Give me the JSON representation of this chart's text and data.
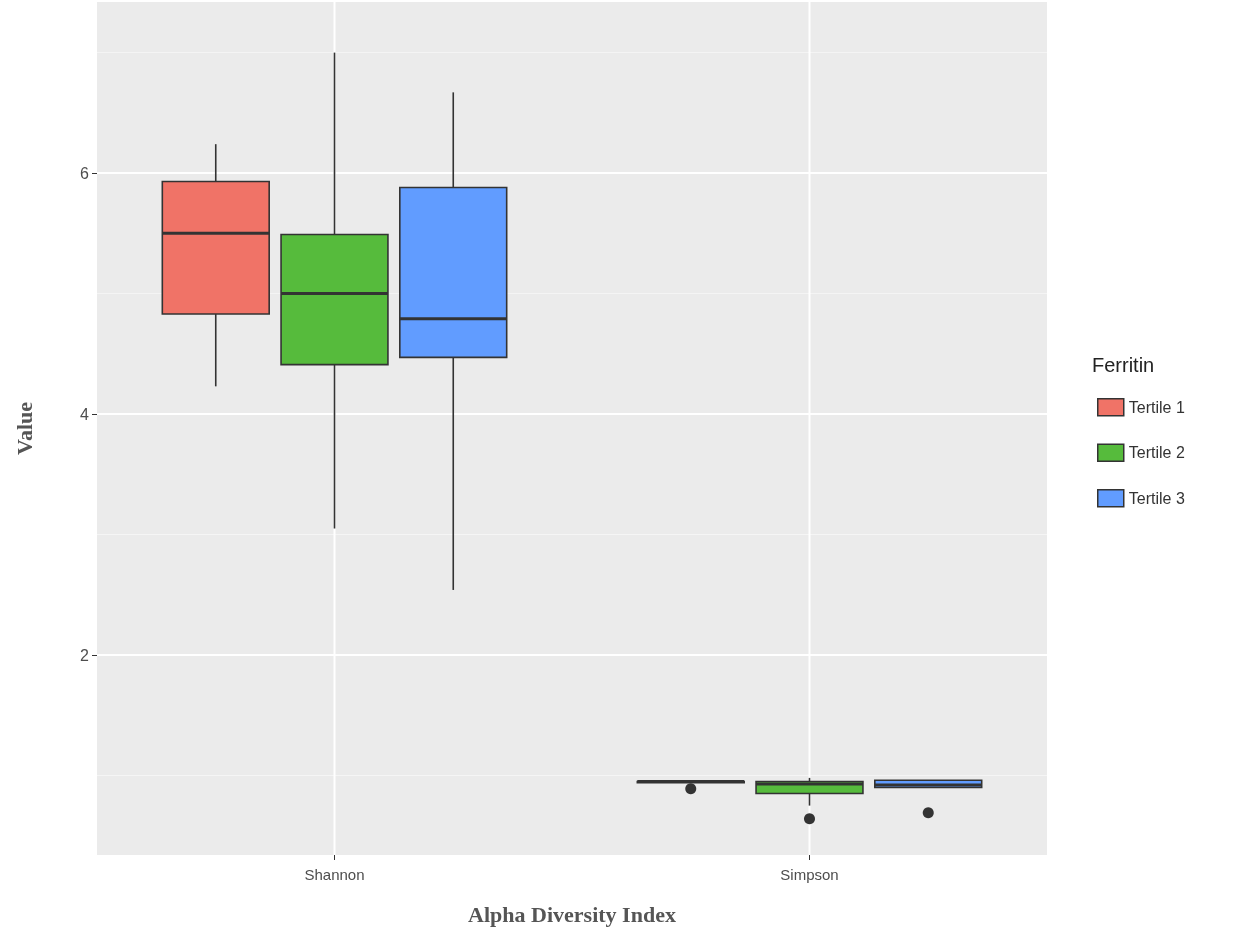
{
  "chart_data": {
    "type": "box",
    "xlabel": "Alpha Diversity Index",
    "ylabel": "Value",
    "legend_title": "Ferritin",
    "legend": "right",
    "grid": true,
    "categories": [
      "Shannon",
      "Simpson"
    ],
    "ylim": [
      0.34,
      7.42
    ],
    "yticks": [
      2,
      4,
      6
    ],
    "series": [
      {
        "name": "Tertile 1",
        "color": "#f07367",
        "boxes": [
          {
            "low": 4.23,
            "q1": 4.83,
            "median": 5.5,
            "q3": 5.93,
            "high": 6.24
          },
          {
            "low": 0.94,
            "q1": 0.94,
            "median": 0.95,
            "q3": 0.95,
            "high": 0.96,
            "outliers": [
              0.89
            ]
          }
        ]
      },
      {
        "name": "Tertile 2",
        "color": "#56bb3c",
        "boxes": [
          {
            "low": 3.05,
            "q1": 4.41,
            "median": 5.0,
            "q3": 5.49,
            "high": 7.0
          },
          {
            "low": 0.75,
            "q1": 0.85,
            "median": 0.93,
            "q3": 0.95,
            "high": 0.98,
            "outliers": [
              0.64
            ]
          }
        ]
      },
      {
        "name": "Tertile 3",
        "color": "#619cff",
        "boxes": [
          {
            "low": 2.54,
            "q1": 4.47,
            "median": 4.79,
            "q3": 5.88,
            "high": 6.67
          },
          {
            "low": 0.9,
            "q1": 0.9,
            "median": 0.92,
            "q3": 0.96,
            "high": 0.96,
            "outliers": [
              0.69
            ]
          }
        ]
      }
    ]
  }
}
